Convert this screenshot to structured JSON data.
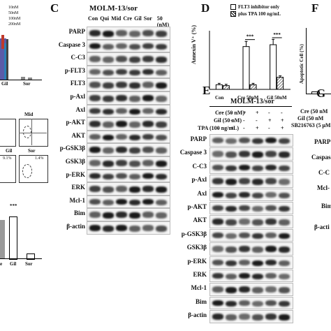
{
  "panels": {
    "C": {
      "label": "C",
      "title": "MOLM-13/sor",
      "lanes": [
        "Con",
        "Qui",
        "Mid",
        "Cre",
        "Gil",
        "Sor",
        "50 (nM)"
      ],
      "rows": [
        "PARP",
        "Caspase 3",
        "C-C3",
        "p-FLT3",
        "FLT3",
        "p-Axl",
        "Axl",
        "p-AKT",
        "AKT",
        "p-GSK3β",
        "GSK3β",
        "p-ERK",
        "ERK",
        "Mcl-1",
        "Bim",
        "β-actin"
      ]
    },
    "D": {
      "label": "D",
      "legend": [
        "FLT3 inhibitor only",
        "plus TPA 100 ng/mL"
      ],
      "ylabel": "Annexin V⁺ (%)",
      "categories": [
        "Con",
        "Cre 50nM",
        "Gil 50nM"
      ],
      "sig": [
        "***",
        "***"
      ]
    },
    "E": {
      "label": "E",
      "title": "MOLM-13/sor",
      "treatments": [
        {
          "name": "Cre (50 nM)",
          "marks": [
            "-",
            "-",
            "+",
            "+",
            "-",
            "-"
          ]
        },
        {
          "name": "Gil (50 nM)",
          "marks": [
            "-",
            "-",
            "-",
            "-",
            "+",
            "+"
          ]
        },
        {
          "name": "TPA (100 ng/mL)",
          "marks": [
            "-",
            "+",
            "-",
            "+",
            "-",
            "+"
          ]
        }
      ],
      "rows": [
        "PARP",
        "Caspase 3",
        "C-C3",
        "p-Axl",
        "Axl",
        "p-AKT",
        "AKT",
        "p-GSK3β",
        "GSK3β",
        "p-ERK",
        "ERK",
        "Mcl-1",
        "Bim",
        "β-actin"
      ]
    },
    "F": {
      "label": "F",
      "ylabel": "Apoptotic Cell (%)"
    },
    "G": {
      "label": "G",
      "treatments": [
        "Cre (50 nM",
        "Gil (50 nM",
        "SB216763 (5 μM"
      ],
      "rows": [
        "PARP",
        "Caspase",
        "C-C",
        "Mcl-",
        "Bim",
        "β-acti"
      ]
    },
    "left": {
      "legend": [
        "10nM",
        "50nM",
        "100nM",
        "200nM"
      ],
      "xcats": [
        "Gil",
        "Sor"
      ],
      "flow": [
        "Mid",
        "Gil",
        "Sor"
      ],
      "pct": [
        "1.4%",
        "9.1%"
      ],
      "barx": [
        "e",
        "Gil",
        "Sor"
      ],
      "sig": "***"
    }
  },
  "chart_data": {
    "type": "bar",
    "title": "",
    "categories": [
      "Con",
      "Cre 50nM",
      "Gil 50nM"
    ],
    "series": [
      {
        "name": "FLT3 inhibitor only",
        "values": [
          5,
          46,
          48
        ]
      },
      {
        "name": "plus TPA 100 ng/mL",
        "values": [
          4,
          5,
          13
        ]
      }
    ],
    "ylabel": "Annexin V⁺ (%)",
    "ylim": [
      0,
      60
    ]
  }
}
